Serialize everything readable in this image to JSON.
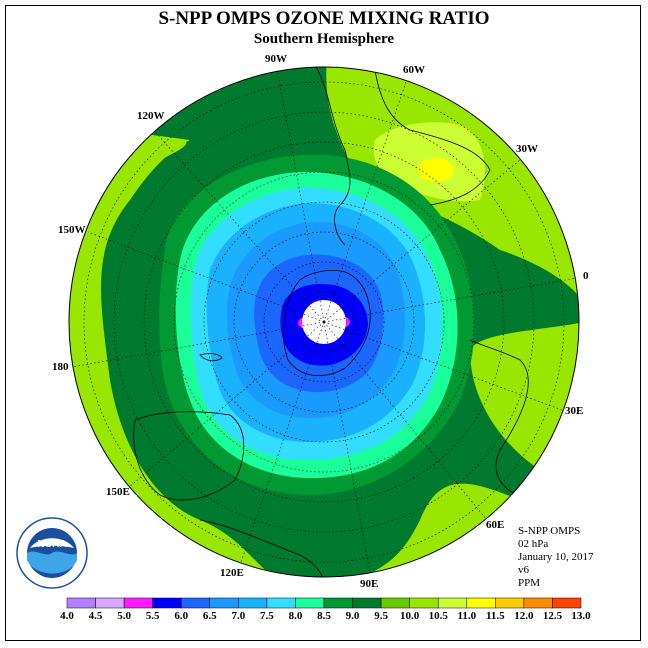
{
  "title": "S-NPP OMPS OZONE MIXING RATIO",
  "subtitle": "Southern Hemisphere",
  "longitude_labels": [
    {
      "text": "90W"
    },
    {
      "text": "60W"
    },
    {
      "text": "120W"
    },
    {
      "text": "30W"
    },
    {
      "text": "150W"
    },
    {
      "text": "0"
    },
    {
      "text": "180"
    },
    {
      "text": "30E"
    },
    {
      "text": "150E"
    },
    {
      "text": "60E"
    },
    {
      "text": "120E"
    },
    {
      "text": "90E"
    }
  ],
  "info": {
    "instrument": "S-NPP OMPS",
    "level": "02 hPa",
    "date": "January 10, 2017",
    "version": "v6",
    "units": "PPM"
  },
  "logo": {
    "text": "NOAA",
    "ring_text": "NATIONAL OCEANIC AND ATMOSPHERIC ADMINISTRATION · U.S. DEPARTMENT OF COMMERCE"
  },
  "colorbar": {
    "ticks": [
      "4.0",
      "4.5",
      "5.0",
      "5.5",
      "6.0",
      "6.5",
      "7.0",
      "7.5",
      "8.0",
      "8.5",
      "9.0",
      "9.5",
      "10.0",
      "10.5",
      "11.0",
      "11.5",
      "12.0",
      "12.5",
      "13.0"
    ],
    "colors": [
      "#b380ff",
      "#d6a8ff",
      "#ff1aff",
      "#0000ff",
      "#1a66ff",
      "#1a99ff",
      "#1ab2ff",
      "#33ddff",
      "#1aff99",
      "#009933",
      "#007a2e",
      "#66cc00",
      "#99e600",
      "#ccff33",
      "#ffff00",
      "#ffcc00",
      "#ff8c00",
      "#ff4400",
      "#ff0000",
      "#994d33"
    ]
  }
}
